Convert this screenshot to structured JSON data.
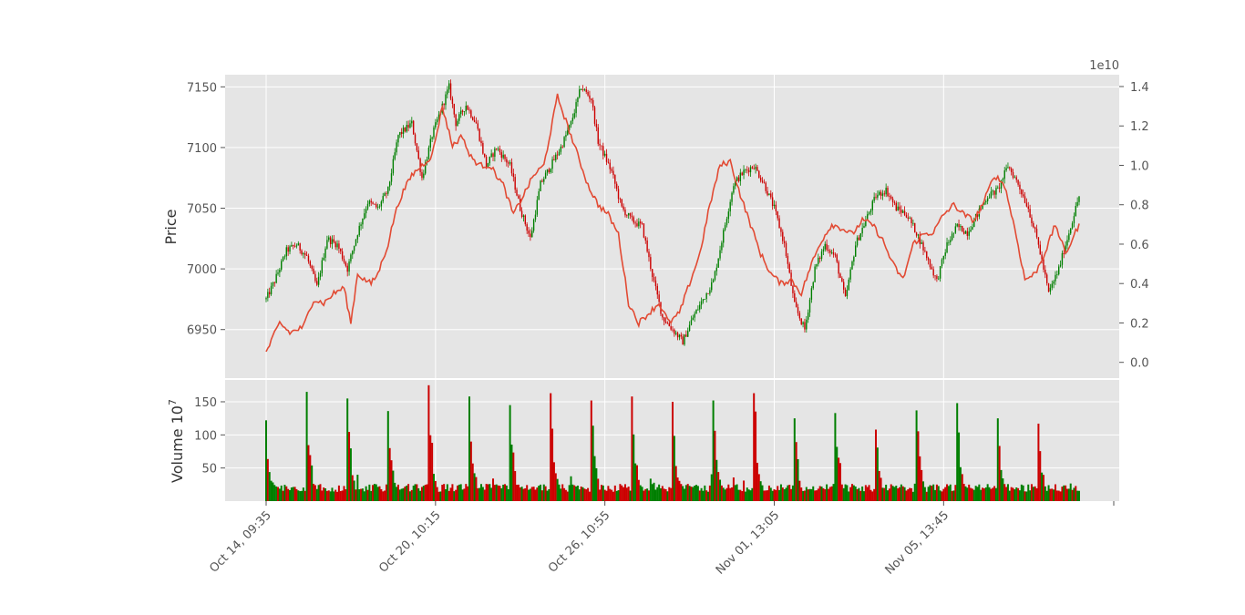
{
  "colors": {
    "panel_bg": "#e5e5e5",
    "grid": "#ffffff",
    "tick_text": "#555555",
    "label_text": "#333333",
    "up": "#007f00",
    "down": "#cc0000",
    "line": "#e24a33"
  },
  "chart_data": [
    {
      "type": "candlestick+line",
      "xlabel": "",
      "ylabel": "Price",
      "ylim": [
        6910,
        7160
      ],
      "yticks": [
        6950,
        7000,
        7050,
        7100,
        7150
      ],
      "secondary_y": {
        "label": "",
        "offset_text": "1e10",
        "ylim": [
          -0.08,
          1.46
        ],
        "ticks": [
          0.0,
          0.2,
          0.4,
          0.6,
          0.8,
          1.0,
          1.2,
          1.4
        ],
        "tick_labels": [
          "0.0",
          "0.2",
          "0.4",
          "0.6",
          "0.8",
          "1.0",
          "1.2",
          "1.4"
        ]
      },
      "x_index_range": [
        0,
        480
      ],
      "xtick_index": [
        0,
        100,
        200,
        300,
        400
      ],
      "xtick_labels": [
        "Oct 14, 09:35",
        "Oct 20, 10:15",
        "Oct 26, 10:55",
        "Nov 01, 13:05",
        "Nov 05, 13:45"
      ],
      "price_anchor_index": [
        0,
        5,
        12,
        18,
        24,
        30,
        36,
        42,
        48,
        54,
        60,
        66,
        72,
        78,
        86,
        92,
        98,
        108,
        112,
        118,
        124,
        130,
        136,
        144,
        150,
        156,
        162,
        168,
        174,
        180,
        186,
        192,
        196,
        204,
        210,
        216,
        222,
        228,
        234,
        240,
        246,
        252,
        258,
        264,
        270,
        276,
        282,
        288,
        294,
        300,
        306,
        312,
        318,
        324,
        330,
        336,
        342,
        348,
        354,
        360,
        366,
        372,
        378,
        384,
        390,
        396,
        402,
        408,
        414,
        420,
        426,
        432,
        438,
        444,
        450,
        456,
        462,
        468,
        474,
        480
      ],
      "price_anchor_value": [
        6975,
        6990,
        7015,
        7020,
        7010,
        6985,
        7025,
        7020,
        7000,
        7030,
        7055,
        7050,
        7065,
        7110,
        7120,
        7075,
        7110,
        7150,
        7120,
        7135,
        7120,
        7085,
        7100,
        7085,
        7050,
        7025,
        7070,
        7085,
        7100,
        7120,
        7150,
        7140,
        7105,
        7080,
        7050,
        7040,
        7035,
        6995,
        6960,
        6950,
        6940,
        6960,
        6975,
        6990,
        7030,
        7070,
        7080,
        7085,
        7070,
        7050,
        7020,
        6970,
        6950,
        7000,
        7020,
        7010,
        6975,
        7020,
        7040,
        7060,
        7065,
        7050,
        7045,
        7030,
        7010,
        6990,
        7020,
        7035,
        7030,
        7045,
        7060,
        7065,
        7085,
        7070,
        7050,
        7020,
        6980,
        7000,
        7030,
        7060,
        7065
      ],
      "line_anchor_index": [
        0,
        8,
        14,
        22,
        28,
        34,
        40,
        46,
        50,
        54,
        58,
        62,
        66,
        72,
        76,
        80,
        86,
        92,
        98,
        104,
        110,
        116,
        120,
        126,
        132,
        140,
        146,
        152,
        158,
        164,
        172,
        178,
        184,
        190,
        196,
        202,
        208,
        214,
        220,
        226,
        232,
        238,
        244,
        250,
        256,
        262,
        268,
        274,
        280,
        286,
        292,
        298,
        304,
        310,
        316,
        322,
        328,
        334,
        340,
        346,
        352,
        358,
        364,
        370,
        376,
        382,
        388,
        394,
        400,
        406,
        412,
        418,
        424,
        430,
        436,
        442,
        448,
        454,
        460,
        466,
        472,
        480
      ],
      "line_anchor_value": [
        0.05,
        0.2,
        0.15,
        0.18,
        0.32,
        0.3,
        0.35,
        0.38,
        0.2,
        0.45,
        0.42,
        0.4,
        0.45,
        0.6,
        0.75,
        0.85,
        0.95,
        1.0,
        1.05,
        1.3,
        1.1,
        1.15,
        1.05,
        1.0,
        1.0,
        0.9,
        0.75,
        0.85,
        0.95,
        1.0,
        1.35,
        1.2,
        1.05,
        0.9,
        0.8,
        0.75,
        0.65,
        0.3,
        0.2,
        0.25,
        0.3,
        0.2,
        0.25,
        0.4,
        0.55,
        0.8,
        1.0,
        1.02,
        0.85,
        0.7,
        0.55,
        0.45,
        0.4,
        0.42,
        0.35,
        0.5,
        0.62,
        0.7,
        0.68,
        0.65,
        0.72,
        0.7,
        0.62,
        0.5,
        0.42,
        0.6,
        0.65,
        0.66,
        0.75,
        0.8,
        0.75,
        0.72,
        0.82,
        0.95,
        0.9,
        0.68,
        0.42,
        0.45,
        0.56,
        0.7,
        0.55,
        0.7
      ]
    },
    {
      "type": "bar",
      "ylabel": "Volume  10^7",
      "ylabel_base": "Volume  10",
      "ylabel_exp": "7",
      "ylim": [
        0,
        183
      ],
      "yticks": [
        50,
        100,
        150
      ],
      "spike_index": [
        0,
        24,
        48,
        72,
        96,
        120,
        144,
        168,
        192,
        216,
        240,
        264,
        288,
        312,
        336,
        360,
        384,
        408,
        432,
        456
      ],
      "spike_value": [
        122,
        165,
        155,
        136,
        175,
        158,
        145,
        163,
        152,
        158,
        150,
        152,
        163,
        125,
        133,
        108,
        137,
        148,
        125,
        117
      ],
      "bar_count": 481,
      "baseline_value": 20
    }
  ]
}
